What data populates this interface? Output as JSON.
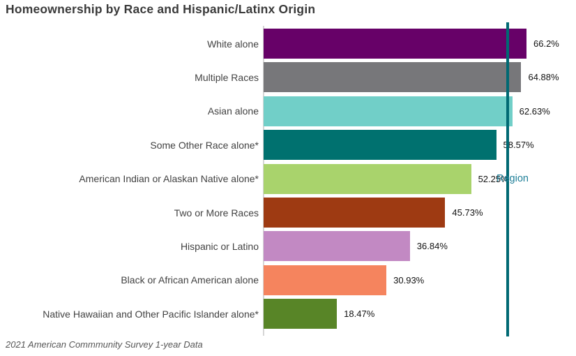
{
  "title": "Homeownership by Race and Hispanic/Latinx Origin",
  "source_note": "2021 American Commmunity Survey 1-year Data",
  "chart_data": {
    "type": "bar",
    "orientation": "horizontal",
    "title": "Homeownership by Race and Hispanic/Latinx Origin",
    "xlabel": "",
    "ylabel": "",
    "xlim": [
      0,
      78
    ],
    "grid": false,
    "legend": false,
    "categories": [
      "White alone",
      "Multiple Races",
      "Asian alone",
      "Some Other Race alone*",
      "American Indian or Alaskan Native alone*",
      "Two or More Races",
      "Hispanic or Latino",
      "Black or African American alone",
      "Native Hawaiian and Other Pacific Islander alone*"
    ],
    "values": [
      66.2,
      64.88,
      62.63,
      58.57,
      52.25,
      45.73,
      36.84,
      30.93,
      18.47
    ],
    "value_labels": [
      "66.2%",
      "64.88%",
      "62.63%",
      "58.57%",
      "52.25%",
      "45.73%",
      "36.84%",
      "30.93%",
      "18.47%"
    ],
    "bar_colors": [
      "#670168",
      "#77777a",
      "#71cfc8",
      "#00716f",
      "#a9d36c",
      "#9e3a12",
      "#c289c3",
      "#f5845e",
      "#588527"
    ],
    "reference_line": {
      "label": "Region",
      "value": 61.4,
      "line_color": "#006973",
      "label_color": "#1e7f98"
    },
    "source_note": "2021 American Commmunity Survey 1-year Data",
    "colors": {
      "title_text": "#3a3a3a",
      "category_text": "#424242",
      "value_text": "#121212",
      "axis_line": "#d6d6d6"
    }
  }
}
